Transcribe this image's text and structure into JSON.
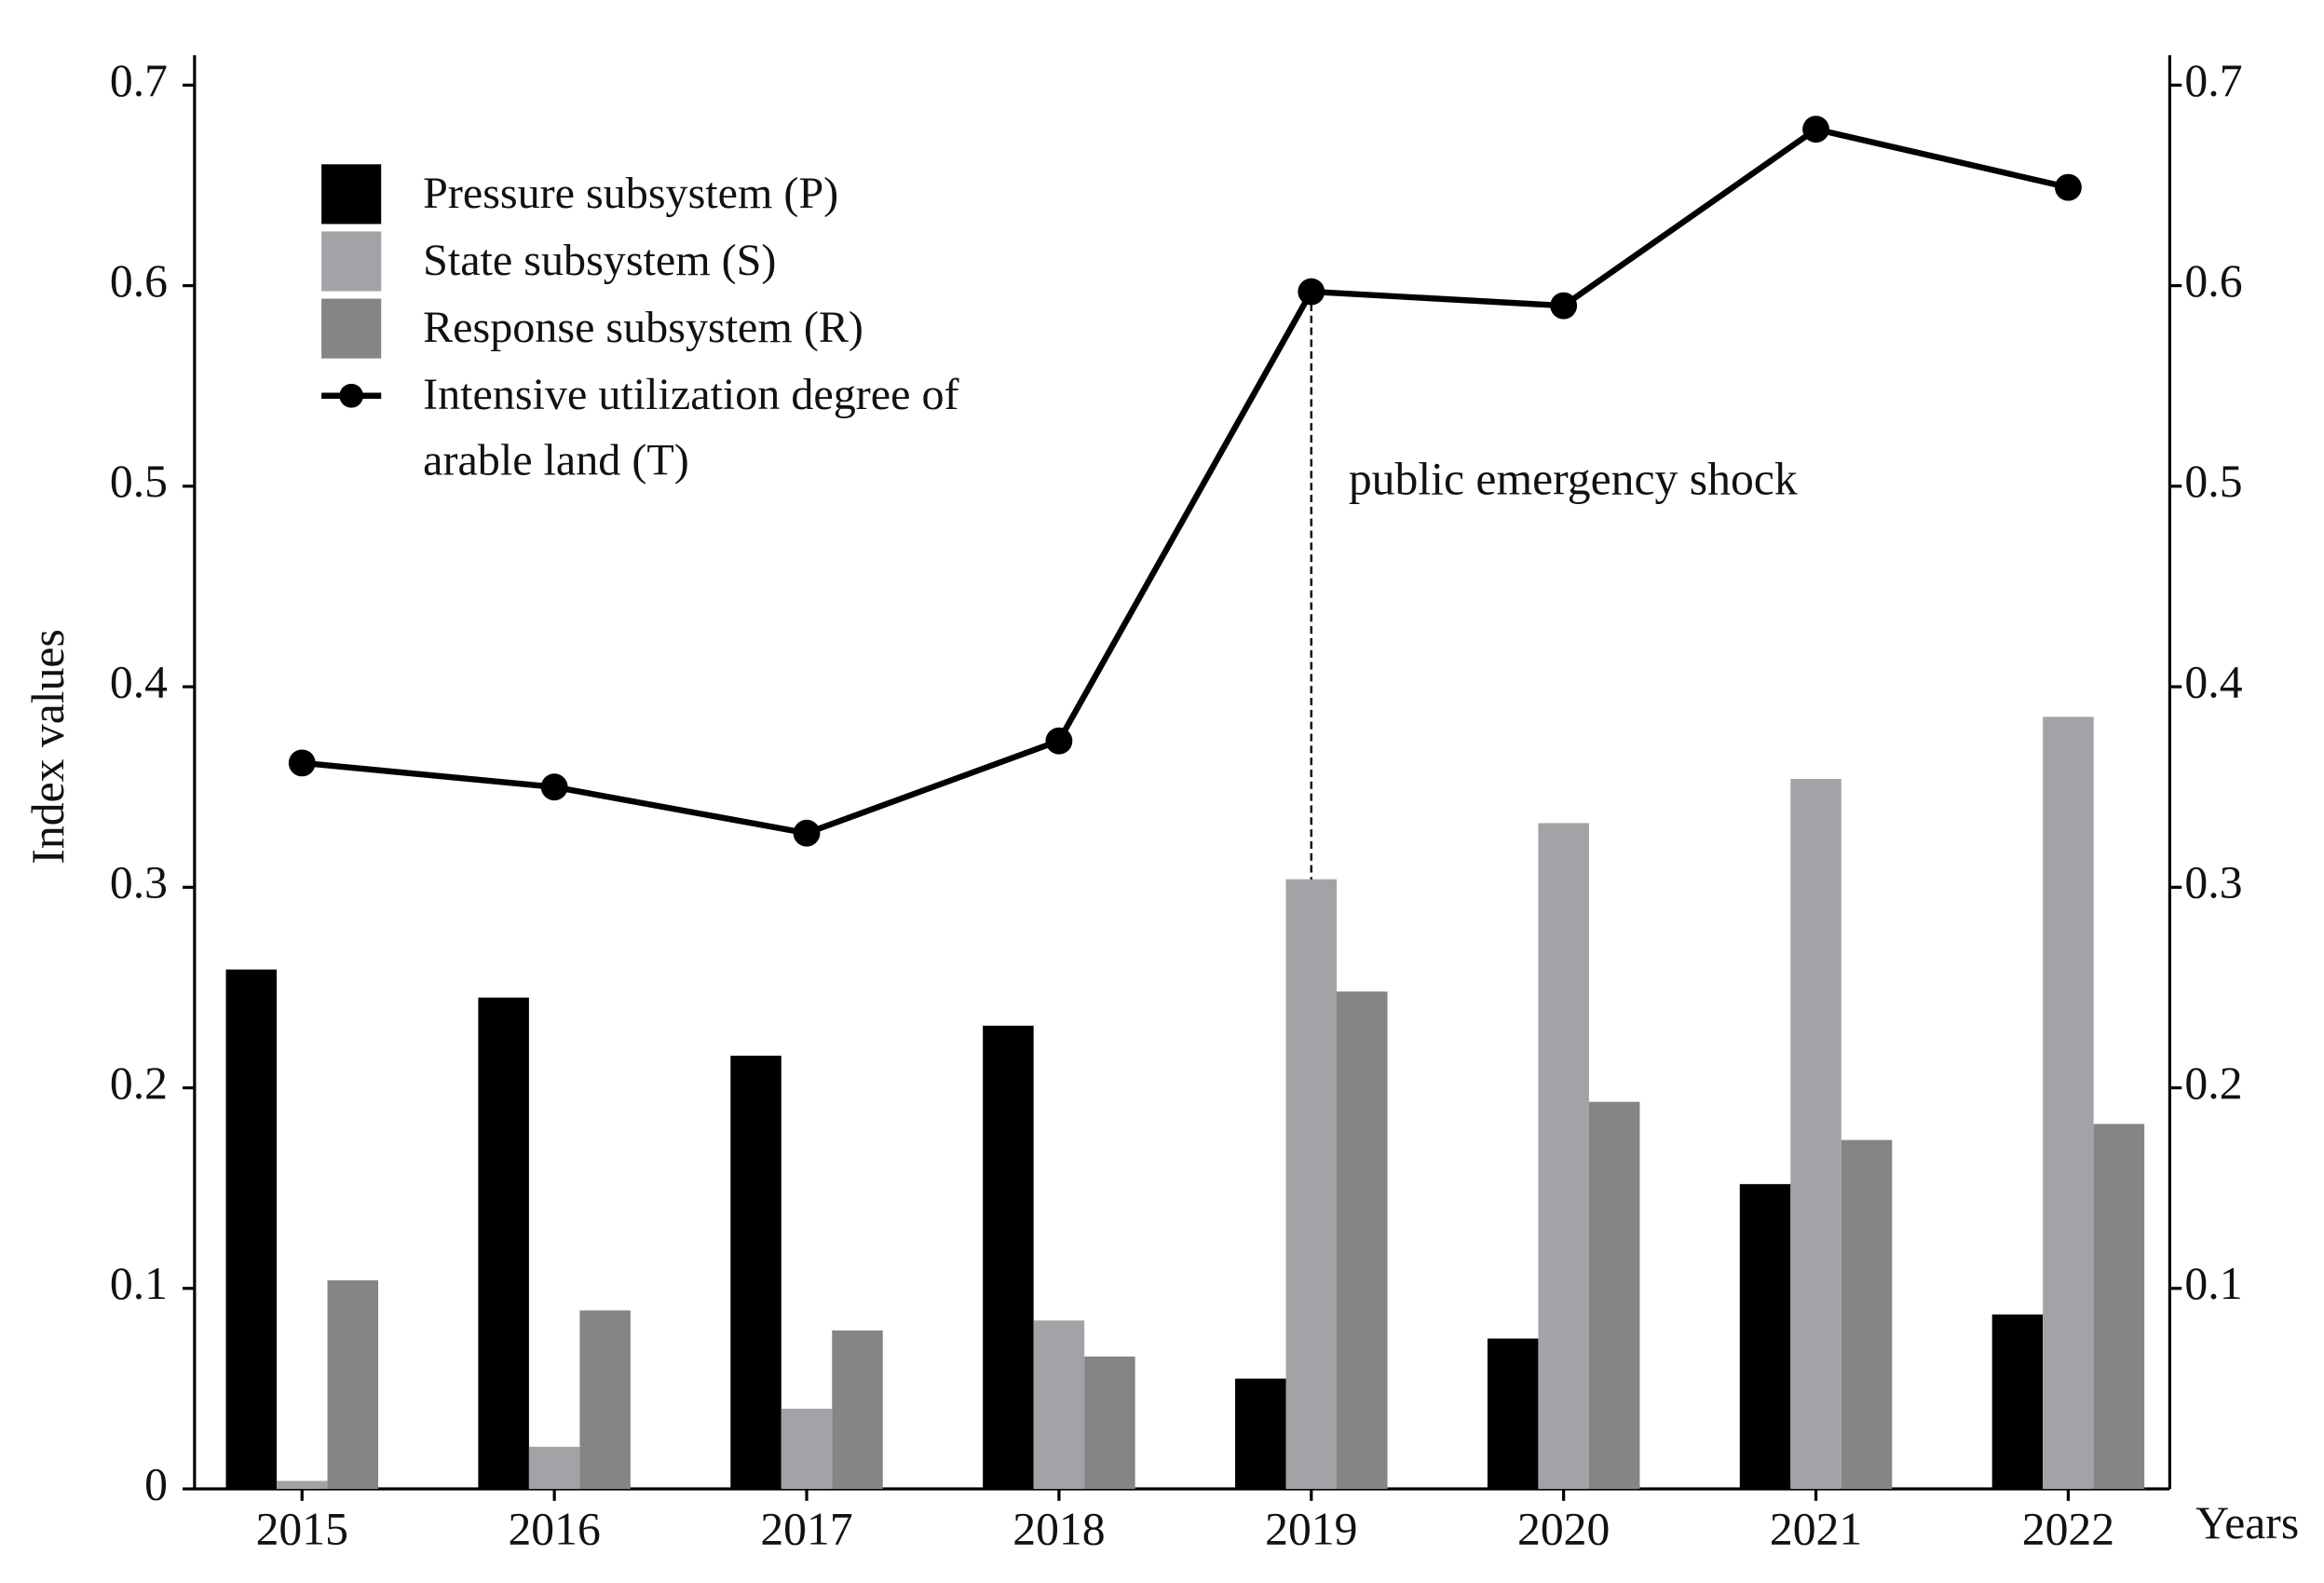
{
  "chart_data": {
    "type": "bar",
    "y_label": "Index values",
    "x_label": "Years",
    "annotation": "public emergency shock",
    "categories": [
      "2015",
      "2016",
      "2017",
      "2018",
      "2019",
      "2020",
      "2021",
      "2022"
    ],
    "series": [
      {
        "name": "Pressure subsystem (P)",
        "color": "#000000",
        "type": "bar",
        "values": [
          0.259,
          0.245,
          0.216,
          0.231,
          0.055,
          0.075,
          0.152,
          0.087
        ]
      },
      {
        "name": "State subsystem (S)",
        "color": "#a3a3a7",
        "type": "bar",
        "values": [
          0.004,
          0.021,
          0.04,
          0.084,
          0.304,
          0.332,
          0.354,
          0.385
        ]
      },
      {
        "name": "Response subsystem (R)",
        "color": "#858585",
        "type": "bar",
        "values": [
          0.104,
          0.089,
          0.079,
          0.066,
          0.248,
          0.193,
          0.174,
          0.182
        ]
      },
      {
        "name": "Intensive utilization degree of arable land (T)",
        "color": "#000000",
        "type": "line",
        "axis": "y2",
        "values": [
          0.362,
          0.35,
          0.327,
          0.373,
          0.597,
          0.59,
          0.678,
          0.649
        ]
      }
    ],
    "ylim": [
      0,
      0.7
    ],
    "yticks": [
      0,
      0.1,
      0.2,
      0.3,
      0.4,
      0.5,
      0.6,
      0.7
    ],
    "y2lim": [
      0,
      0.7
    ],
    "y2ticks": [
      0.1,
      0.2,
      0.3,
      0.4,
      0.5,
      0.6,
      0.7
    ],
    "grid": false,
    "legend": "upper left"
  }
}
